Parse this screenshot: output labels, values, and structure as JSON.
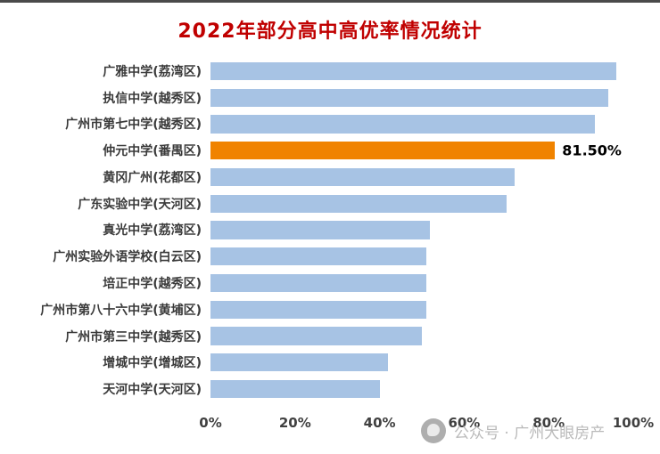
{
  "title": "2022年部分高中高优率情况统计",
  "colors": {
    "title_text": "#c00000",
    "bar": "#a7c3e4",
    "highlight_bar": "#f08300",
    "axis_text": "#404040",
    "label_text": "#3a3a3a",
    "watermark_text": "#b3b3b3"
  },
  "chart_data": {
    "type": "bar",
    "orientation": "horizontal",
    "title": "2022年部分高中高优率情况统计",
    "categories": [
      "广雅中学(荔湾区)",
      "执信中学(越秀区)",
      "广州市第七中学(越秀区)",
      "仲元中学(番禺区)",
      "黄冈广州(花都区)",
      "广东实验中学(天河区)",
      "真光中学(荔湾区)",
      "广州实验外语学校(白云区)",
      "培正中学(越秀区)",
      "广州市第八十六中学(黄埔区)",
      "广州市第三中学(越秀区)",
      "增城中学(增城区)",
      "天河中学(天河区)"
    ],
    "values": [
      96,
      94,
      91,
      81.5,
      72,
      70,
      52,
      51,
      51,
      51,
      50,
      42,
      40
    ],
    "highlight_index": 3,
    "highlight_label": "81.50%",
    "x_ticks": [
      "0%",
      "20%",
      "40%",
      "60%",
      "80%",
      "100%"
    ],
    "xlim": [
      0,
      100
    ],
    "grid": false,
    "legend": "none"
  },
  "watermark": {
    "icon": "media-logo-icon",
    "text": "公众号 · 广州大眼房产"
  }
}
